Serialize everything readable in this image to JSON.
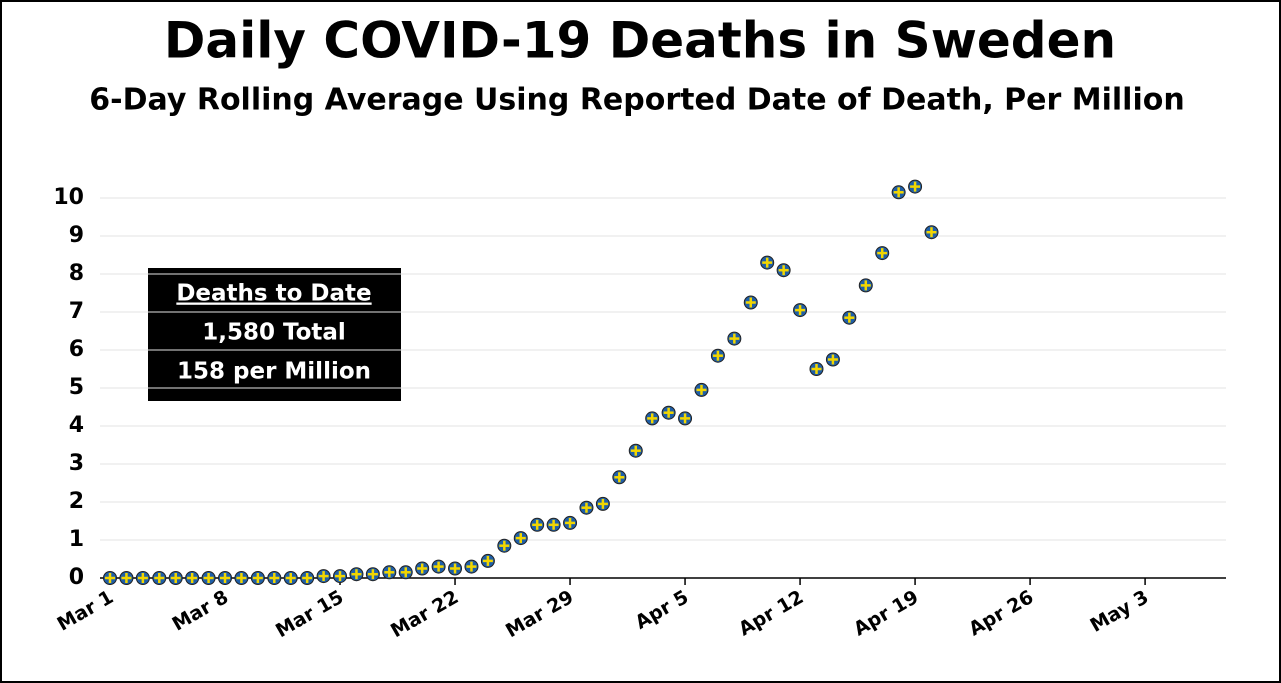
{
  "chart_data": {
    "type": "scatter",
    "title": "Daily COVID-19 Deaths in Sweden",
    "subtitle": "6-Day Rolling Average Using Reported Date of Death, Per Million",
    "annotation": {
      "heading": "Deaths to Date",
      "lines": [
        "1,580 Total",
        "158 per Million"
      ]
    },
    "categories": [
      "Mar 1",
      null,
      null,
      null,
      null,
      null,
      null,
      "Mar 8",
      null,
      null,
      null,
      null,
      null,
      null,
      "Mar 15",
      null,
      null,
      null,
      null,
      null,
      null,
      "Mar 22",
      null,
      null,
      null,
      null,
      null,
      null,
      "Mar 29",
      null,
      null,
      null,
      null,
      null,
      null,
      "Apr 5",
      null,
      null,
      null,
      null,
      null,
      null,
      "Apr 12",
      null,
      null,
      null,
      null,
      null,
      null,
      "Apr 19",
      null,
      null,
      null,
      null,
      null,
      null,
      "Apr 26",
      null,
      null,
      null,
      null,
      null,
      null,
      "May 3",
      null,
      null,
      null,
      null,
      null
    ],
    "values": [
      0,
      0,
      0,
      0,
      0,
      0,
      0,
      0,
      0,
      0,
      0,
      0,
      0,
      0.05,
      0.05,
      0.1,
      0.1,
      0.15,
      0.15,
      0.25,
      0.3,
      0.25,
      0.3,
      0.45,
      0.85,
      1.05,
      1.4,
      1.4,
      1.45,
      1.85,
      1.95,
      2.65,
      3.35,
      4.2,
      4.35,
      4.2,
      4.95,
      5.85,
      6.3,
      7.25,
      8.3,
      8.1,
      7.05,
      5.5,
      5.75,
      6.85,
      7.7,
      8.55,
      10.15,
      10.3,
      9.1,
      null,
      null,
      null,
      null,
      null,
      null,
      null,
      null,
      null,
      null,
      null,
      null,
      null,
      null,
      null,
      null,
      null,
      null
    ],
    "color": "#1f5fa8",
    "marker_cross_color": "#f2d600",
    "ylim": [
      0,
      10.5
    ],
    "yticks": [
      0,
      1,
      2,
      3,
      4,
      5,
      6,
      7,
      8,
      9,
      10
    ],
    "grid": true
  }
}
